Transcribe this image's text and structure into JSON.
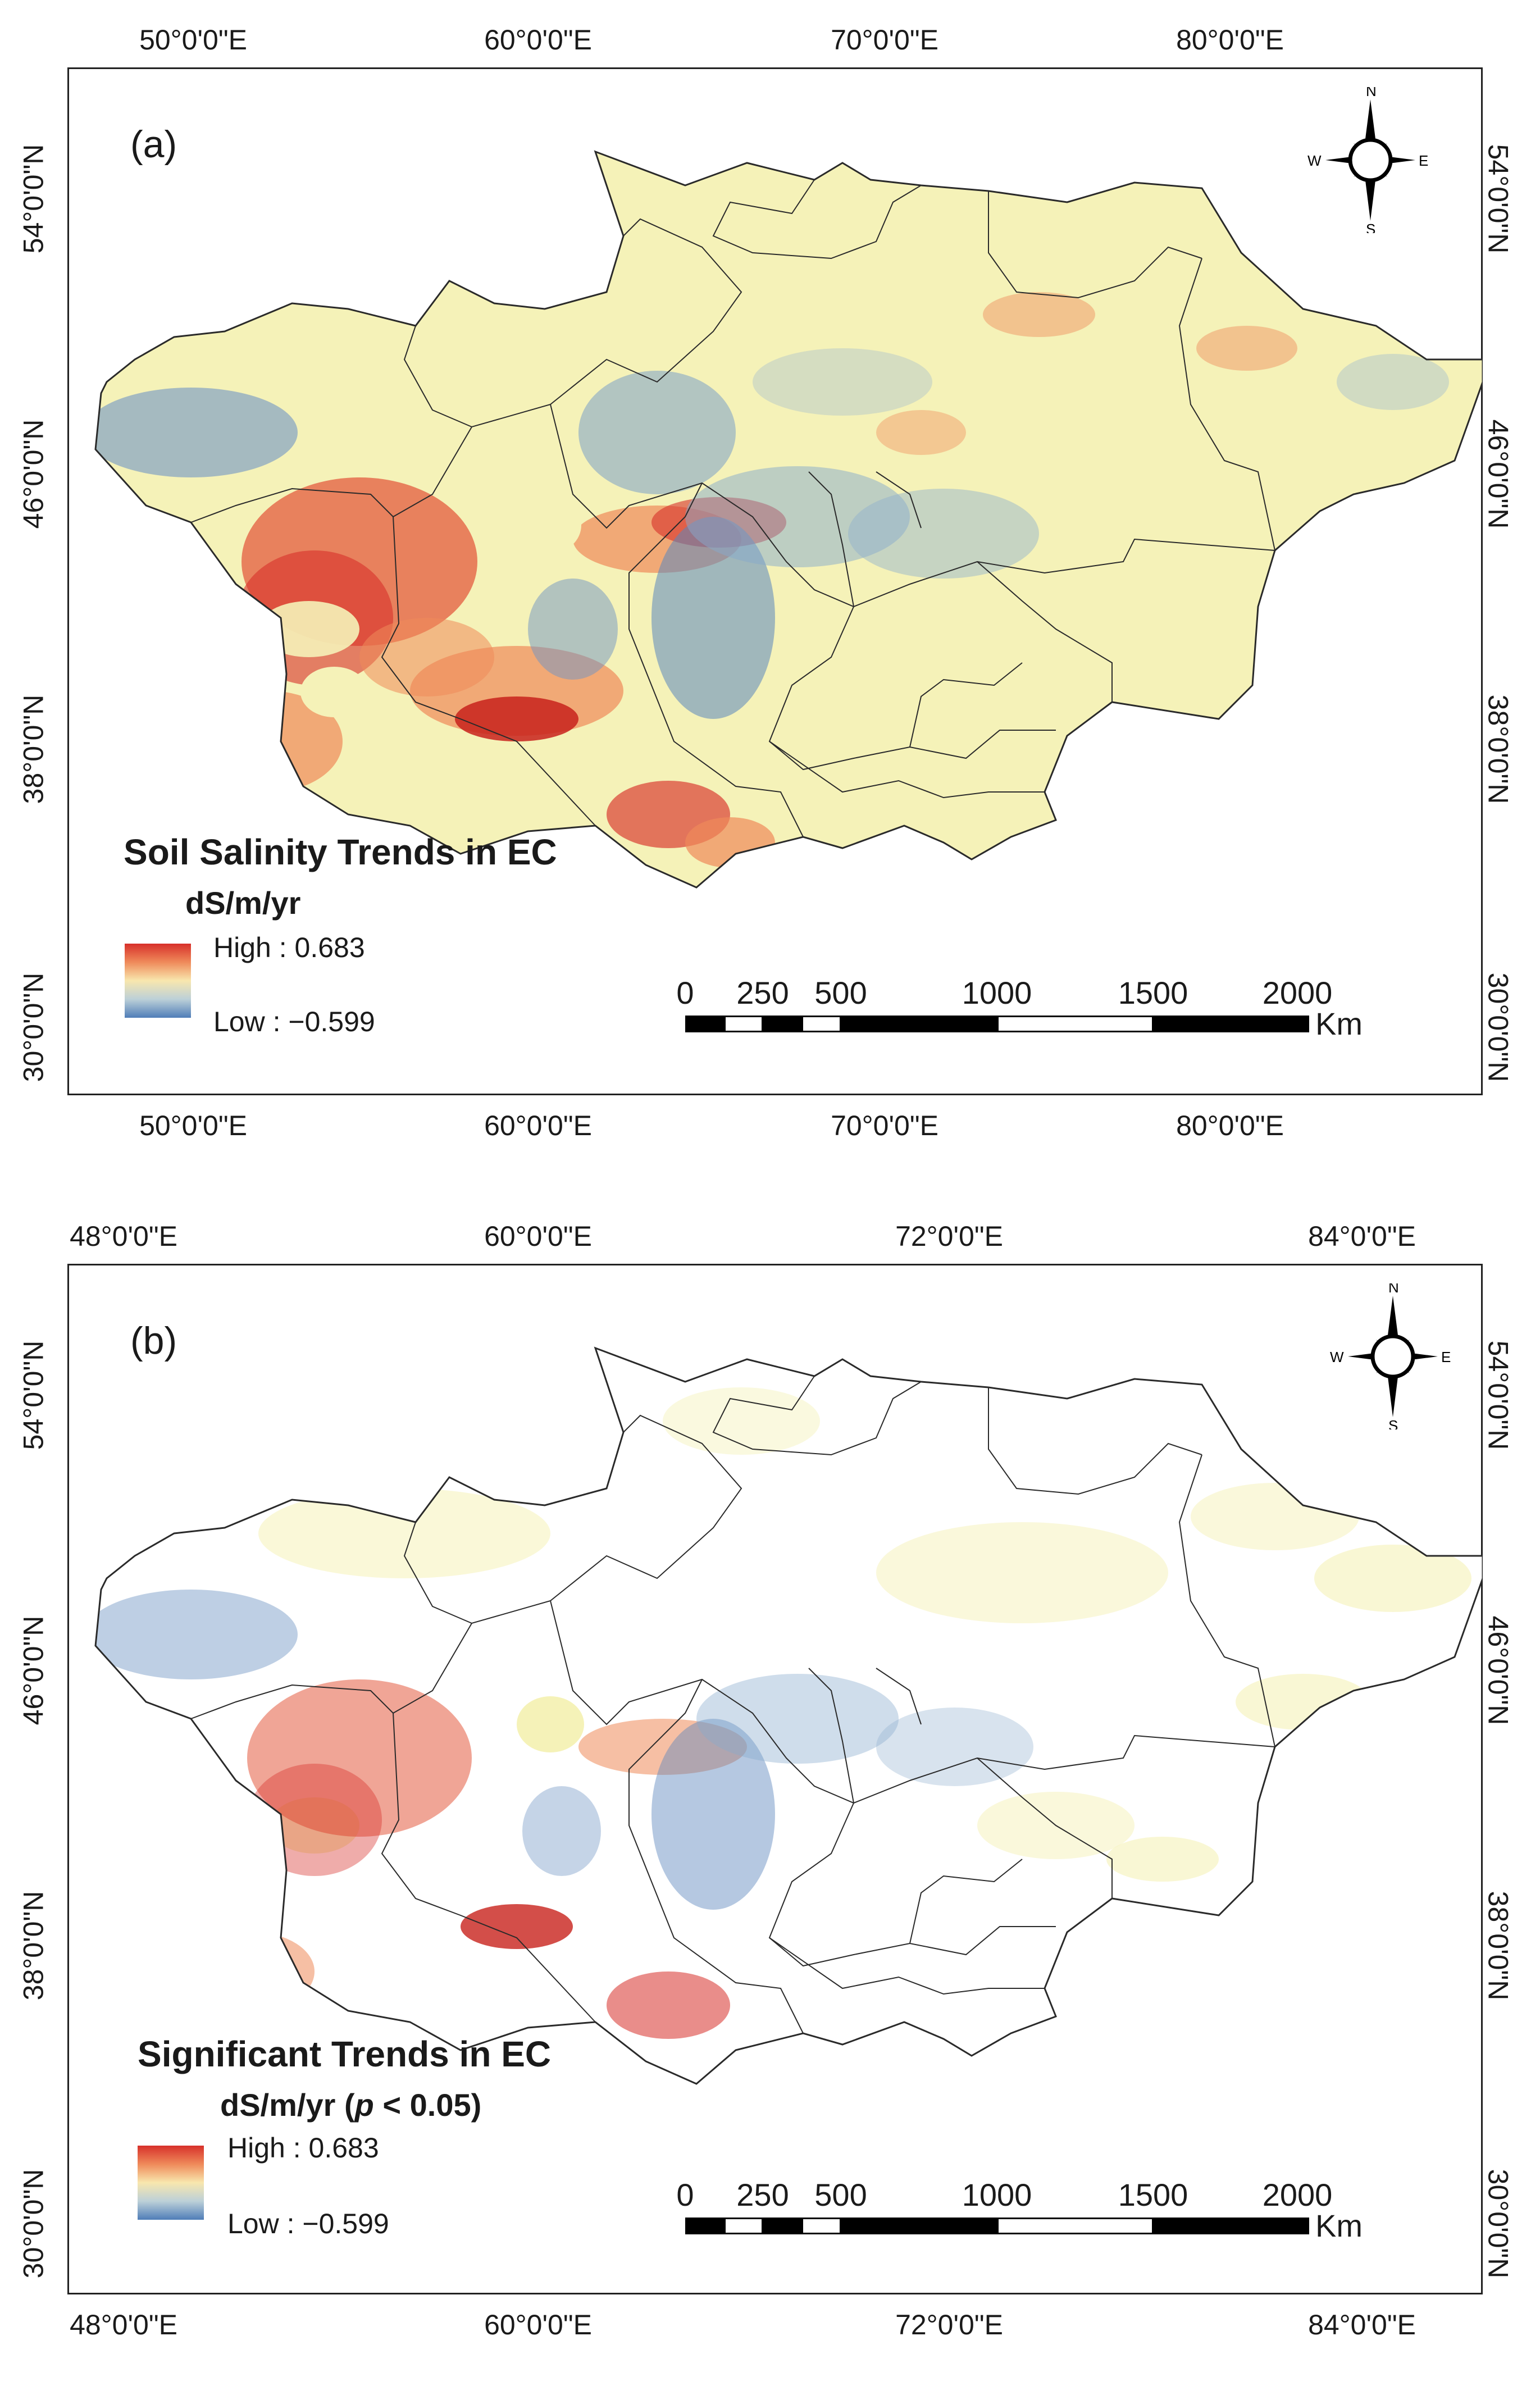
{
  "panels": [
    {
      "label": "(a)",
      "lon_ticks_top": [
        "50°0'0\"E",
        "60°0'0\"E",
        "70°0'0\"E",
        "80°0'0\"E"
      ],
      "lon_ticks_bottom": [
        "50°0'0\"E",
        "60°0'0\"E",
        "70°0'0\"E",
        "80°0'0\"E"
      ],
      "lat_ticks": [
        "54°0'0\"N",
        "46°0'0\"N",
        "38°0'0\"N",
        "30°0'0\"N"
      ],
      "legend": {
        "title": "Soil Salinity Trends in EC",
        "unit": "dS/m/yr",
        "high": "High : 0.683",
        "low": "Low : −0.599",
        "ramp_colors": [
          "#d7302a",
          "#ef8a5a",
          "#f8e7ae",
          "#bcd0d8",
          "#4f7db8"
        ]
      },
      "scalebar": {
        "labels": [
          "0",
          "250",
          "500",
          "1000",
          "1500",
          "2000"
        ],
        "unit": "Km"
      },
      "compass": {
        "n": "N",
        "s": "S",
        "e": "E",
        "w": "W"
      },
      "map_style": "filled"
    },
    {
      "label": "(b)",
      "lon_ticks_top": [
        "48°0'0\"E",
        "60°0'0\"E",
        "72°0'0\"E",
        "84°0'0\"E"
      ],
      "lon_ticks_bottom": [
        "48°0'0\"E",
        "60°0'0\"E",
        "72°0'0\"E",
        "84°0'0\"E"
      ],
      "lat_ticks": [
        "54°0'0\"N",
        "46°0'0\"N",
        "38°0'0\"N",
        "30°0'0\"N"
      ],
      "legend": {
        "title": "Significant Trends in EC",
        "unit_prefix": "dS/m/yr (",
        "unit_p": "p",
        "unit_suffix": " < 0.05)",
        "high": "High : 0.683",
        "low": "Low : −0.599",
        "ramp_colors": [
          "#d7302a",
          "#ef8a5a",
          "#f8e7ae",
          "#bcd0d8",
          "#4f7db8"
        ]
      },
      "scalebar": {
        "labels": [
          "0",
          "250",
          "500",
          "1000",
          "1500",
          "2000"
        ],
        "unit": "Km"
      },
      "compass": {
        "n": "N",
        "s": "S",
        "e": "E",
        "w": "W"
      },
      "map_style": "sparse"
    }
  ],
  "colors": {
    "base": "#f5f2b8",
    "high": "#d7302a",
    "mid_high": "#ef8a5a",
    "mid_low": "#bcd0d8",
    "low": "#4f7db8",
    "border": "#2a2a2a"
  }
}
